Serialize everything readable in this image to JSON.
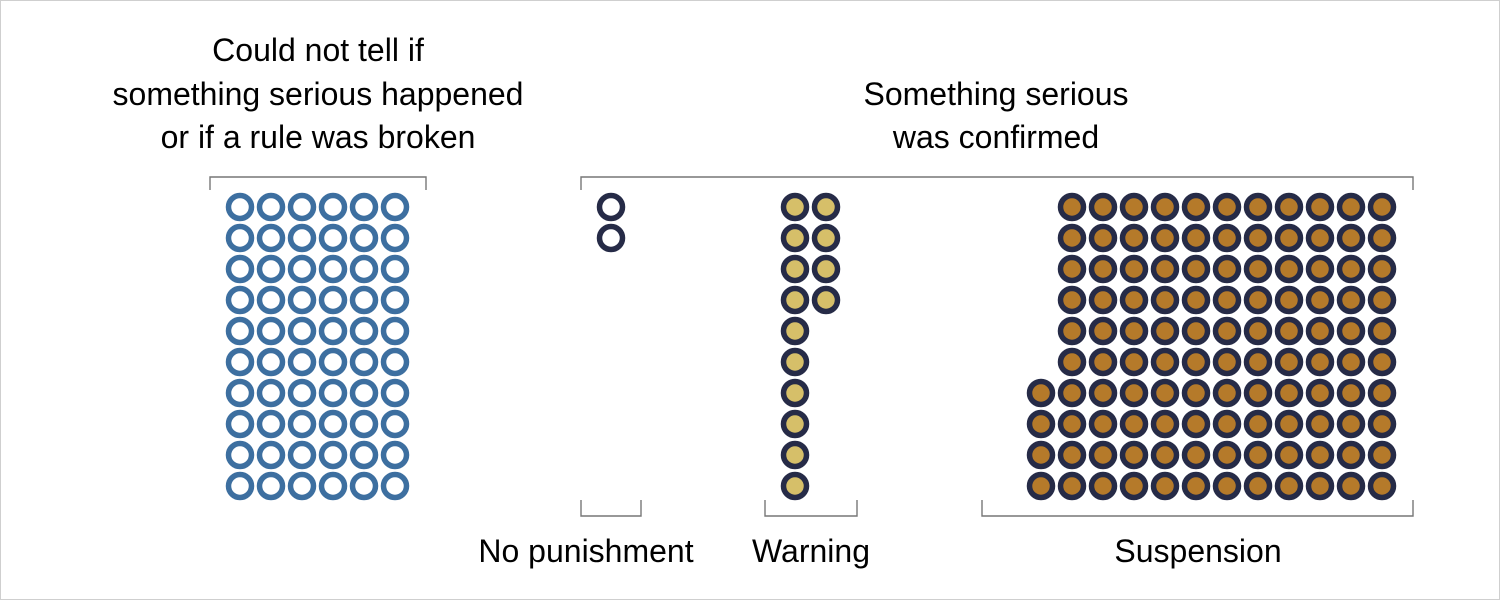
{
  "chart_data": {
    "type": "unit-chart",
    "groups": [
      {
        "id": "unclear",
        "title_lines": [
          "Could not tell if",
          "something serious happened",
          "or if a rule was broken"
        ],
        "count": 60,
        "color": "#3d6fa0",
        "fill": "#ffffff"
      },
      {
        "id": "confirmed",
        "title_lines": [
          "Something serious",
          "was confirmed"
        ],
        "subgroups": [
          {
            "id": "no-punishment",
            "label": "No punishment",
            "count": 2,
            "color": "#262b47",
            "fill": "#ffffff"
          },
          {
            "id": "warning",
            "label": "Warning",
            "count": 14,
            "color": "#262b47",
            "fill": "#d6bf69"
          },
          {
            "id": "suspension",
            "label": "Suspension",
            "count": 114,
            "color": "#262b47",
            "fill": "#b57a2a"
          }
        ]
      }
    ]
  }
}
